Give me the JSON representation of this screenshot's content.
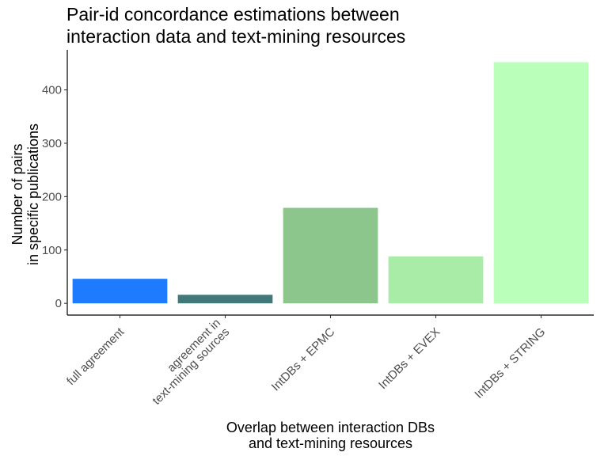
{
  "chart_data": {
    "type": "bar",
    "title_lines": [
      "Pair-id concordance estimations between",
      "interaction data and text-mining resources"
    ],
    "xlabel_lines": [
      "Overlap between interaction DBs",
      "and text-mining resources"
    ],
    "ylabel_lines": [
      "Number of pairs",
      "in specific publications"
    ],
    "categories": [
      {
        "lines": [
          "full agreement"
        ]
      },
      {
        "lines": [
          "agreement in",
          "text-mining sources"
        ]
      },
      {
        "lines": [
          "IntDBs + EPMC"
        ]
      },
      {
        "lines": [
          "IntDBs + EVEX"
        ]
      },
      {
        "lines": [
          "IntDBs + STRING"
        ]
      }
    ],
    "values": [
      46,
      16,
      179,
      88,
      452
    ],
    "colors": [
      "#1e7bfe",
      "#417878",
      "#8cc68c",
      "#a8eca8",
      "#baffba"
    ],
    "yticks": [
      0,
      100,
      200,
      300,
      400
    ],
    "ylim": [
      -22,
      475
    ],
    "grid": false,
    "legend": "none"
  }
}
